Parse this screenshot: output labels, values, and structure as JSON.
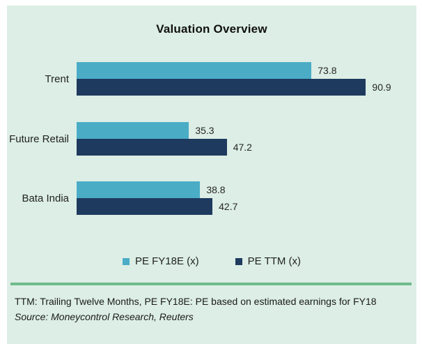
{
  "colors": {
    "panel_background": "#dceee5",
    "series_fy18e": "#4bacc6",
    "series_ttm": "#1e3a5f",
    "divider_green": "#6fbc8d",
    "text": "#1a1a1a"
  },
  "chart_data": {
    "type": "bar",
    "orientation": "horizontal",
    "title": "Valuation Overview",
    "categories": [
      "Trent",
      "Future Retail",
      "Bata India"
    ],
    "series": [
      {
        "name": "PE FY18E (x)",
        "color": "#4bacc6",
        "values": [
          73.8,
          35.3,
          38.8
        ]
      },
      {
        "name": "PE TTM (x)",
        "color": "#1e3a5f",
        "values": [
          90.9,
          47.2,
          42.7
        ]
      }
    ],
    "xlim": [
      0,
      100
    ],
    "xlabel": "",
    "ylabel": "",
    "grid": false,
    "legend_position": "bottom",
    "value_labels": true,
    "value_label_format": "one-decimal"
  },
  "footer": {
    "note": "TTM: Trailing Twelve Months, PE FY18E: PE based on estimated earnings for FY18",
    "source": "Source: Moneycontrol Research, Reuters"
  }
}
